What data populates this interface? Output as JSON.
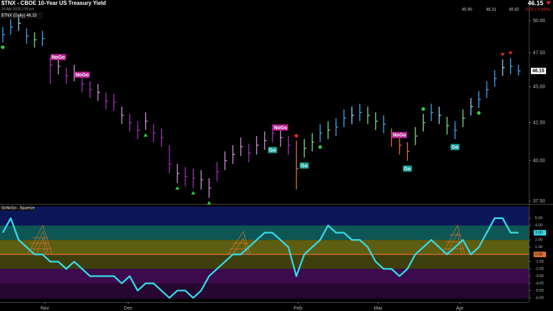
{
  "chart_data": [
    {
      "type": "ohlc",
      "title": "$TNX - CBOE 10-Year US Treasury Yield",
      "subtitle": "19-Apr-2024 2:59 pm",
      "legend": "$TNX (Daily) 46.15",
      "quote": {
        "last": "46.15",
        "open": "45.90",
        "high": "46.31",
        "low": "45.82",
        "change": "-0.32 (-0.69%)"
      },
      "close": [
        48.9,
        49.5,
        49.8,
        48.8,
        48.5,
        48.6,
        46.6,
        46.5,
        45.8,
        46.0,
        45.2,
        44.8,
        44.6,
        44.0,
        43.9,
        43.0,
        42.5,
        42.0,
        42.6,
        41.8,
        41.5,
        39.8,
        39.2,
        39.0,
        38.9,
        38.8,
        38.3,
        39.3,
        40.0,
        40.4,
        40.9,
        40.5,
        41.0,
        41.3,
        41.8,
        41.5,
        41.0,
        39.5,
        40.8,
        41.2,
        41.8,
        42.0,
        42.2,
        42.8,
        43.0,
        43.2,
        43.0,
        42.6,
        42.4,
        41.5,
        41.0,
        40.6,
        41.6,
        42.5,
        43.2,
        43.0,
        42.3,
        42.0,
        42.8,
        43.6,
        44.1,
        44.8,
        45.6,
        46.4,
        46.5,
        46.15
      ],
      "high": [
        49.5,
        50.1,
        50.3,
        49.4,
        49.1,
        49.2,
        47.2,
        47.1,
        46.4,
        46.6,
        45.8,
        45.4,
        45.2,
        44.6,
        44.5,
        43.6,
        43.1,
        42.6,
        43.2,
        42.4,
        42.1,
        41.0,
        39.8,
        39.6,
        39.5,
        39.4,
        38.9,
        39.9,
        40.6,
        41.0,
        41.5,
        41.1,
        41.6,
        41.9,
        42.4,
        42.1,
        41.6,
        41.3,
        41.4,
        41.8,
        42.4,
        42.6,
        42.8,
        43.4,
        43.6,
        43.8,
        43.6,
        43.2,
        43.0,
        42.1,
        41.6,
        41.2,
        42.2,
        43.1,
        43.8,
        43.6,
        42.9,
        42.6,
        43.4,
        44.2,
        44.7,
        45.4,
        46.2,
        47.0,
        47.1,
        46.6
      ],
      "low": [
        48.3,
        48.9,
        49.2,
        48.2,
        47.9,
        48.0,
        45.2,
        45.9,
        45.2,
        45.4,
        44.6,
        44.2,
        44.0,
        43.4,
        43.3,
        42.4,
        41.9,
        41.4,
        42.0,
        41.2,
        40.9,
        39.2,
        38.6,
        38.4,
        38.3,
        38.2,
        37.7,
        38.7,
        39.4,
        39.8,
        40.3,
        39.9,
        40.4,
        40.7,
        41.2,
        40.9,
        40.4,
        38.2,
        40.2,
        40.6,
        41.2,
        41.4,
        41.6,
        42.2,
        42.4,
        42.6,
        42.4,
        42.0,
        41.8,
        40.9,
        40.4,
        40.0,
        41.0,
        41.9,
        42.6,
        42.4,
        41.7,
        41.4,
        42.2,
        43.0,
        43.5,
        44.2,
        45.0,
        45.8,
        45.9,
        45.82
      ],
      "colors": [
        "#3fa9f5",
        "#3fa9f5",
        "#8fd8ff",
        "#3fa9f5",
        "#7ee08a",
        "#3fa9f5",
        "#a82fc0",
        "#d58fe0",
        "#a82fc0",
        "#d58fe0",
        "#a82fc0",
        "#a82fc0",
        "#d58fe0",
        "#a82fc0",
        "#a82fc0",
        "#d58fe0",
        "#a82fc0",
        "#a82fc0",
        "#d58fe0",
        "#a82fc0",
        "#a82fc0",
        "#a82fc0",
        "#d58fe0",
        "#a82fc0",
        "#a82fc0",
        "#d58fe0",
        "#d58fe0",
        "#a82fc0",
        "#d58fe0",
        "#d58fe0",
        "#d58fe0",
        "#a82fc0",
        "#d58fe0",
        "#d58fe0",
        "#a82fc0",
        "#d58fe0",
        "#a82fc0",
        "#e4703a",
        "#7ee08a",
        "#7ee08a",
        "#3fa9f5",
        "#7ee08a",
        "#3fa9f5",
        "#3fa9f5",
        "#8fd8ff",
        "#3fa9f5",
        "#7ee08a",
        "#7ee08a",
        "#3fa9f5",
        "#e4703a",
        "#e4703a",
        "#e4703a",
        "#7ee08a",
        "#7ee08a",
        "#3fa9f5",
        "#8fd8ff",
        "#7ee08a",
        "#3fa9f5",
        "#7ee08a",
        "#8fd8ff",
        "#3fa9f5",
        "#3fa9f5",
        "#3fa9f5",
        "#8fd8ff",
        "#3fa9f5",
        "#3fa9f5"
      ],
      "log_scale": true,
      "ylim": [
        37.38,
        50.55
      ],
      "yticks": [
        {
          "value": 37.5,
          "label": "37.50"
        },
        {
          "value": 40,
          "label": "40.00"
        },
        {
          "value": 42.5,
          "label": "42.50"
        },
        {
          "value": 45,
          "label": "45.00"
        },
        {
          "value": 47.5,
          "label": "47.50"
        },
        {
          "value": 50,
          "label": "50.00"
        }
      ],
      "last_label": {
        "value": 46.15,
        "label": "46.15"
      },
      "xlim": [
        -0.35,
        66.3
      ],
      "markers": [
        {
          "bar": 0,
          "shape": "circle",
          "side": "below",
          "color": "#2ecc40"
        },
        {
          "bar": 18,
          "shape": "triangle-up",
          "side": "below",
          "color": "#2ecc40"
        },
        {
          "bar": 22,
          "shape": "triangle-up",
          "side": "below",
          "color": "#2ecc40"
        },
        {
          "bar": 24,
          "shape": "triangle-up",
          "side": "below",
          "color": "#2ecc40"
        },
        {
          "bar": 26,
          "shape": "triangle-up",
          "side": "below",
          "color": "#2ecc40"
        },
        {
          "bar": 37,
          "shape": "circle",
          "side": "above",
          "color": "#e02828"
        },
        {
          "bar": 40,
          "shape": "circle",
          "side": "below",
          "color": "#2ecc40"
        },
        {
          "bar": 53,
          "shape": "circle",
          "side": "above",
          "color": "#2ecc40"
        },
        {
          "bar": 60,
          "shape": "circle",
          "side": "below",
          "color": "#2ecc40"
        },
        {
          "bar": 63,
          "shape": "triangle-down",
          "side": "above",
          "color": "#e02828"
        },
        {
          "bar": 64,
          "shape": "triangle-down",
          "side": "above",
          "color": "#e02828"
        }
      ],
      "annotations": [
        {
          "text": "NoGo",
          "bar": 7,
          "side": "above",
          "color": "#b5208f"
        },
        {
          "text": "NoGo",
          "bar": 10,
          "side": "above",
          "color": "#b5208f"
        },
        {
          "text": "Go",
          "bar": 34,
          "side": "below",
          "color": "#149c94"
        },
        {
          "text": "NoGo",
          "bar": 35,
          "side": "above",
          "color": "#b5208f"
        },
        {
          "text": "Go",
          "bar": 38,
          "side": "below",
          "color": "#149c94"
        },
        {
          "text": "NoGo",
          "bar": 50,
          "side": "above",
          "color": "#b5208f"
        },
        {
          "text": "Go",
          "bar": 51,
          "side": "below",
          "color": "#149c94"
        },
        {
          "text": "Go",
          "bar": 57,
          "side": "below",
          "color": "#149c94"
        }
      ]
    },
    {
      "type": "line",
      "title": "GoNoGo - Squeeze",
      "color": "#35d8e6",
      "values": [
        3,
        5,
        2,
        1,
        0,
        0,
        -1,
        -1,
        -2,
        -1,
        -2,
        -3,
        -3,
        -3,
        -3,
        -4,
        -3,
        -5,
        -4,
        -4,
        -5,
        -6,
        -5,
        -5,
        -6,
        -5,
        -3,
        -2,
        -1,
        0,
        0,
        1,
        2,
        3,
        3,
        2,
        1,
        -3,
        0,
        1,
        2,
        4,
        3,
        3,
        2,
        2,
        1,
        -1,
        -2,
        -2,
        -3,
        -2,
        0,
        1,
        2,
        1,
        0,
        1,
        2,
        0,
        1,
        3,
        5,
        5,
        3,
        3
      ],
      "last_value_label": "3.00",
      "ylim": [
        -6.1,
        6.6
      ],
      "yticks": [
        {
          "value": 5,
          "label": "5.00"
        },
        {
          "value": 4,
          "label": "4.00"
        },
        {
          "value": 2,
          "label": "2.00"
        },
        {
          "value": 1,
          "label": "1.00"
        },
        {
          "value": -1,
          "label": "-1.00"
        },
        {
          "value": -2,
          "label": "-2.00"
        },
        {
          "value": -3,
          "label": "-3.00"
        },
        {
          "value": -4,
          "label": "-4.00"
        },
        {
          "value": -5,
          "label": "-5.00"
        },
        {
          "value": -6,
          "label": "-6.00"
        }
      ],
      "zero_line": {
        "value": 0,
        "label": "0.00",
        "color": "#e07030"
      },
      "bands": [
        {
          "from": 4,
          "to": 6.6,
          "color": "#0b1659"
        },
        {
          "from": 2,
          "to": 4,
          "color": "#0e5656"
        },
        {
          "from": 0,
          "to": 2,
          "color": "#5e5e12"
        },
        {
          "from": -2,
          "to": 0,
          "color": "#3e3e0c"
        },
        {
          "from": -4,
          "to": -2,
          "color": "#3d0b4d"
        },
        {
          "from": -6.1,
          "to": -4,
          "color": "#260731"
        }
      ],
      "xlim": [
        -0.35,
        66.3
      ],
      "xticks": [
        {
          "value": 5.3,
          "label": "Nov"
        },
        {
          "value": 15.8,
          "label": "Dec"
        },
        {
          "value": 37.2,
          "label": "Feb"
        },
        {
          "value": 47.3,
          "label": "Mar"
        },
        {
          "value": 57.6,
          "label": "Apr"
        }
      ]
    }
  ]
}
